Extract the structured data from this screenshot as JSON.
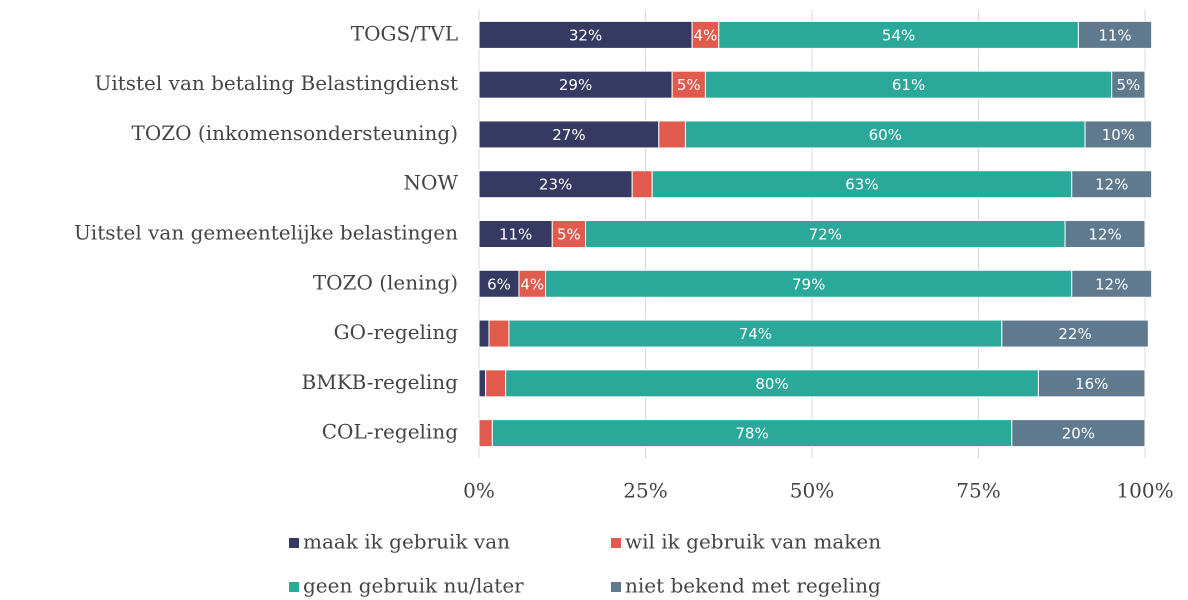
{
  "chart_data": {
    "type": "stacked-bar-horizontal",
    "categories": [
      "TOGS/TVL",
      "Uitstel van betaling Belastingdienst",
      "TOZO (inkomensondersteuning)",
      "NOW",
      "Uitstel van gemeentelijke belastingen",
      "TOZO (lening)",
      "GO-regeling",
      "BMKB-regeling",
      "COL-regeling"
    ],
    "series": [
      {
        "name": "maak ik gebruik van",
        "color": "#363a63",
        "values": [
          32,
          29,
          27,
          23,
          11,
          6,
          1.5,
          1,
          0
        ],
        "value_labels": [
          "32%",
          "29%",
          "27%",
          "23%",
          "11%",
          "6%",
          null,
          null,
          null
        ]
      },
      {
        "name": "wil ik gebruik van maken",
        "color": "#e05a4e",
        "values": [
          4,
          5,
          4,
          3,
          5,
          4,
          3,
          3,
          2
        ],
        "value_labels": [
          "4%",
          "5%",
          null,
          null,
          "5%",
          "4%",
          null,
          null,
          null
        ]
      },
      {
        "name": "geen gebruik nu/later",
        "color": "#2aa89a",
        "values": [
          54,
          61,
          60,
          63,
          72,
          79,
          74,
          80,
          78
        ],
        "value_labels": [
          "54%",
          "61%",
          "60%",
          "63%",
          "72%",
          "79%",
          "74%",
          "80%",
          "78%"
        ]
      },
      {
        "name": "niet bekend met regeling",
        "color": "#5f7a8e",
        "values": [
          11,
          5,
          10,
          12,
          12,
          12,
          22,
          16,
          20
        ],
        "value_labels": [
          "11%",
          "5%",
          "10%",
          "12%",
          "12%",
          "12%",
          "22%",
          "16%",
          "20%"
        ]
      }
    ],
    "xlim": [
      0,
      100
    ],
    "xticks": [
      {
        "value": 0,
        "label": "0%"
      },
      {
        "value": 25,
        "label": "25%"
      },
      {
        "value": 50,
        "label": "50%"
      },
      {
        "value": 75,
        "label": "75%"
      },
      {
        "value": 100,
        "label": "100%"
      }
    ],
    "grid": true
  }
}
